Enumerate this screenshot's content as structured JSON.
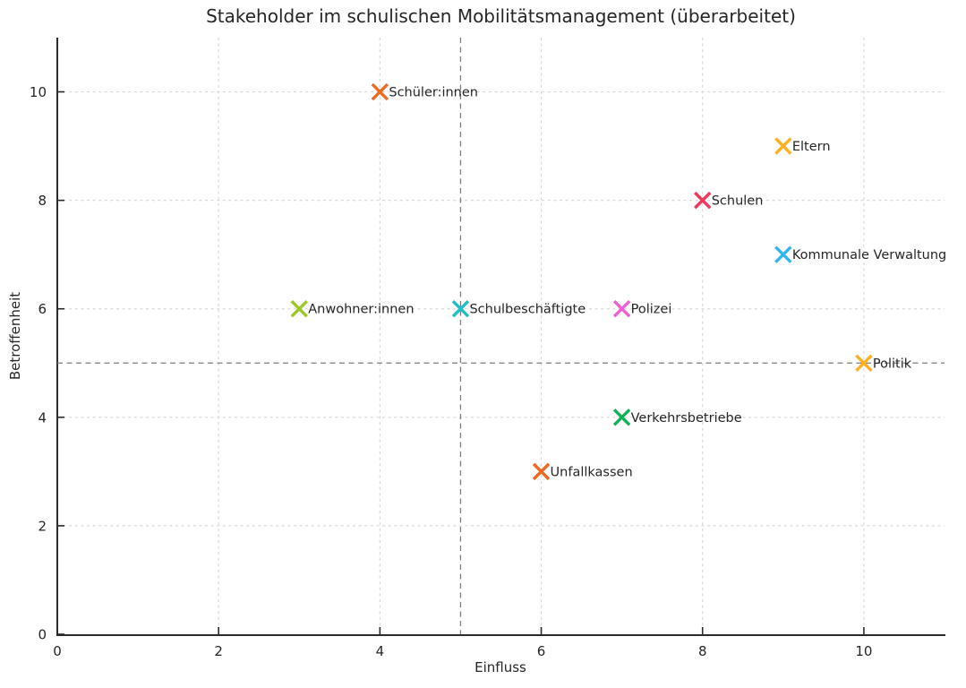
{
  "chart_data": {
    "type": "scatter",
    "title": "Stakeholder im schulischen Mobilitätsmanagement (überarbeitet)",
    "xlabel": "Einfluss",
    "ylabel": "Betroffenheit",
    "xlim": [
      0,
      11
    ],
    "ylim": [
      0,
      11
    ],
    "xticks": [
      0,
      2,
      4,
      6,
      8,
      10
    ],
    "yticks": [
      0,
      2,
      4,
      6,
      8,
      10
    ],
    "grid": true,
    "grid_color": "#d9d9d9",
    "grid_style": "dashed",
    "marker": "X",
    "legend": "none",
    "reference_lines": [
      {
        "orientation": "vertical",
        "value": 5,
        "color": "#7f7f7f",
        "style": "dashed"
      },
      {
        "orientation": "horizontal",
        "value": 5,
        "color": "#7f7f7f",
        "style": "dashed"
      }
    ],
    "points": [
      {
        "label": "Schüler:innen",
        "x": 4,
        "y": 10,
        "color": "#ee6a24"
      },
      {
        "label": "Eltern",
        "x": 9,
        "y": 9,
        "color": "#ffb020"
      },
      {
        "label": "Schulen",
        "x": 8,
        "y": 8,
        "color": "#ef3a5d"
      },
      {
        "label": "Kommunale Verwaltung",
        "x": 9,
        "y": 7,
        "color": "#2fb8f0"
      },
      {
        "label": "Anwohner:innen",
        "x": 3,
        "y": 6,
        "color": "#9cc827"
      },
      {
        "label": "Schulbeschäftigte",
        "x": 5,
        "y": 6,
        "color": "#20bfc4"
      },
      {
        "label": "Polizei",
        "x": 7,
        "y": 6,
        "color": "#f05fd4"
      },
      {
        "label": "Politik",
        "x": 10,
        "y": 5,
        "color": "#ffb020"
      },
      {
        "label": "Verkehrsbetriebe",
        "x": 7,
        "y": 4,
        "color": "#10b259"
      },
      {
        "label": "Unfallkassen",
        "x": 6,
        "y": 3,
        "color": "#ee6a24"
      }
    ],
    "axis_color": "#2b2b2b",
    "text_color": "#262626"
  }
}
